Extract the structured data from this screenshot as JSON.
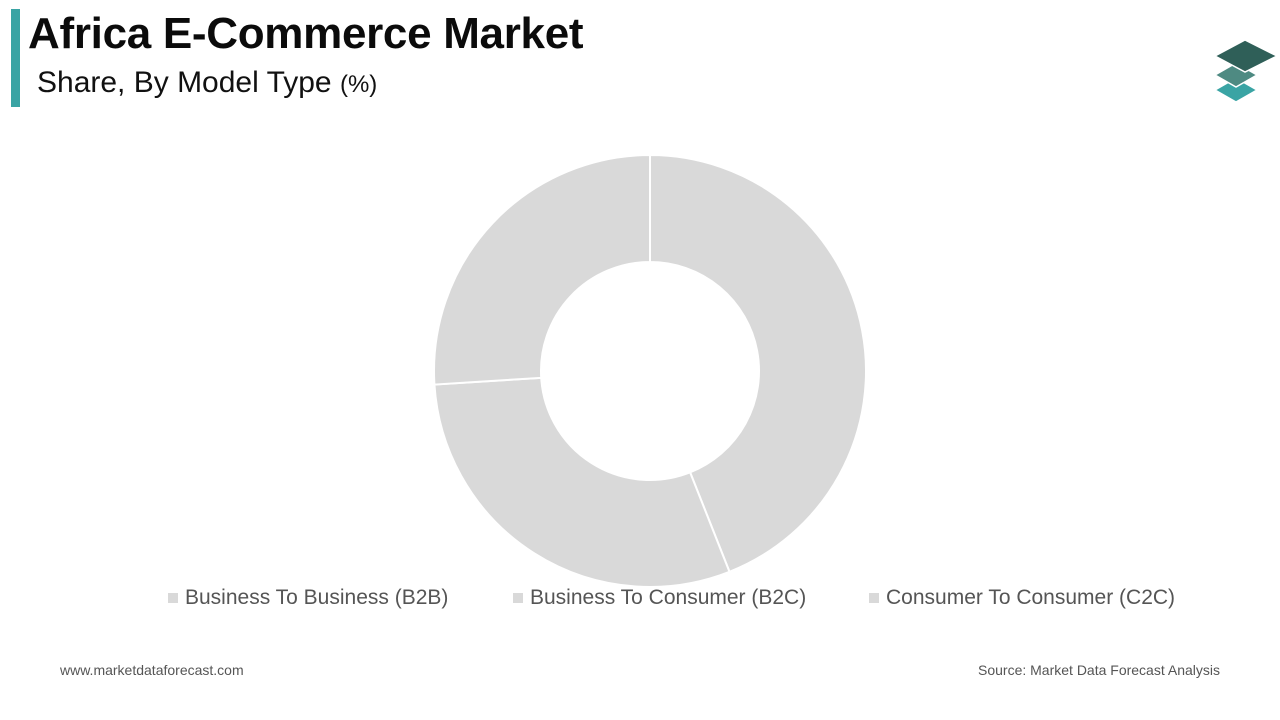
{
  "header": {
    "title": "Africa E-Commerce Market",
    "subtitle": "Share, By Model Type",
    "unit": "(%)",
    "accent_color": "#3aa4a4"
  },
  "logo": {
    "icon": "stacked-layers-icon",
    "colors": [
      "#2f5f58",
      "#4e8a82",
      "#3aa4a4"
    ]
  },
  "chart_data": {
    "type": "pie",
    "donut": true,
    "categories": [
      "Business To Business (B2B)",
      "Business To Consumer (B2C)",
      "Consumer To Consumer (C2C)"
    ],
    "values": [
      44,
      30,
      26
    ],
    "colors": [
      "#d9d9d9",
      "#d9d9d9",
      "#d9d9d9"
    ],
    "legend_position": "bottom",
    "title": "",
    "xlabel": "",
    "ylabel": ""
  },
  "footer": {
    "website": "www.marketdataforecast.com",
    "source": "Source: Market Data Forecast Analysis"
  }
}
